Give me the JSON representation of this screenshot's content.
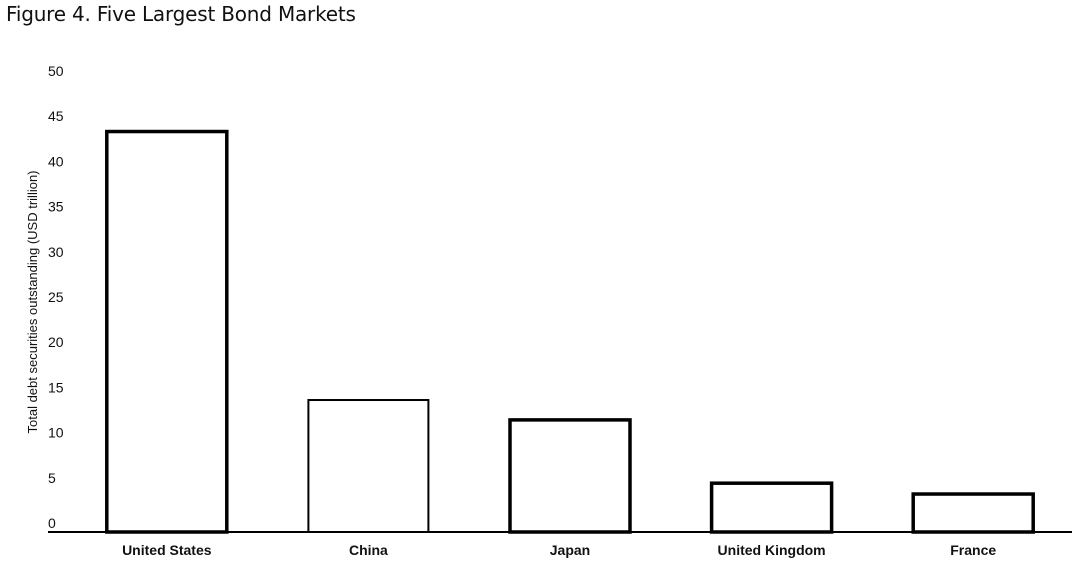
{
  "title": "Figure 4. Five Largest Bond Markets",
  "chart_data": {
    "type": "bar",
    "title": "Figure 4. Five Largest Bond Markets",
    "xlabel": "",
    "ylabel": "Total debt securities outstanding (USD trillion)",
    "ylim": [
      0,
      50
    ],
    "yticks": [
      0,
      5,
      10,
      15,
      20,
      25,
      30,
      35,
      40,
      45,
      50
    ],
    "categories": [
      "United States",
      "China",
      "Japan",
      "United Kingdom",
      "France"
    ],
    "values": [
      44.3,
      14.6,
      12.4,
      5.4,
      4.2
    ],
    "grid": false,
    "legend": "none",
    "bar_fill": "#ffffff",
    "bar_stroke": "#000000"
  }
}
